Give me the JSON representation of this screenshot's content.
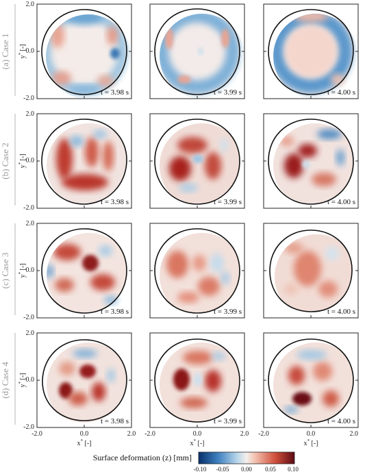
{
  "colors": {
    "neg_strong": "#1f4e8c",
    "neg_mid": "#4f8fc7",
    "neg_light": "#a8cce6",
    "neutral": "#f3eeec",
    "pos_light": "#f0b4a3",
    "pos_mid": "#d6614b",
    "pos_strong": "#8c1319",
    "outline": "#111111"
  },
  "rows": [
    {
      "label": "(a) Case 1",
      "ytick_top": "2.0",
      "ytick_mid": "0.0",
      "ytick_bottom": "-2.0",
      "ylabel": "y* [-]",
      "times": [
        "t = 3.98 s",
        "t = 3.99 s",
        "t = 4.00 s"
      ]
    },
    {
      "label": "(b) Case 2",
      "ytick_top": "2.0",
      "ytick_mid": "0.0",
      "ytick_bottom": "-2.0",
      "ylabel": "y* [-]",
      "times": [
        "t = 3.98 s",
        "t = 3.99 s",
        "t = 4.00 s"
      ]
    },
    {
      "label": "(c) Case 3",
      "ytick_top": "2.0",
      "ytick_mid": "0.0",
      "ytick_bottom": "-2.0",
      "ylabel": "y* [-]",
      "times": [
        "t = 3.98 s",
        "t = 3.99 s",
        "t = 4.00 s"
      ]
    },
    {
      "label": "(d) Case 4",
      "ytick_top": "2.0",
      "ytick_mid": "0.0",
      "ytick_bottom": "-2.0",
      "ylabel": "y* [-]",
      "times": [
        "t = 3.98 s",
        "t = 3.99 s",
        "t = 4.00 s"
      ]
    }
  ],
  "xaxis": {
    "ticks": [
      "-2.0",
      "0.0",
      "2.0"
    ],
    "label": "x* [-]"
  },
  "colorbar": {
    "title": "Surface deformation (z) [mm]",
    "ticks": [
      "-0.10",
      "-0.05",
      "0.00",
      "0.05",
      "0.10"
    ]
  }
}
